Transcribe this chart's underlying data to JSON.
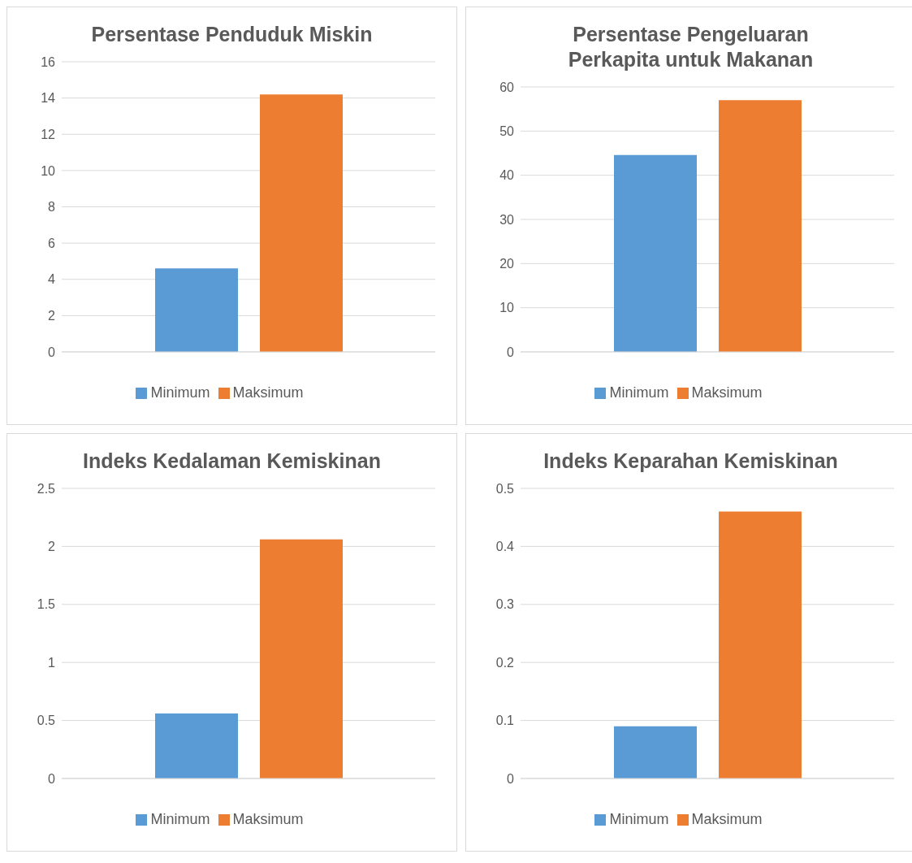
{
  "chart_data": [
    {
      "type": "bar",
      "title": "Persentase Penduduk Miskin",
      "categories": [
        null
      ],
      "series": [
        {
          "name": "Minimum",
          "color": "#5b9bd5",
          "values": [
            4.6
          ]
        },
        {
          "name": "Maksimum",
          "color": "#ed7d31",
          "values": [
            14.2
          ]
        }
      ],
      "ylim": [
        0,
        16
      ],
      "yticks": [
        0,
        2,
        4,
        6,
        8,
        10,
        12,
        14,
        16
      ],
      "grid": "y",
      "legend": "bottom",
      "tick_labels": "y"
    },
    {
      "type": "bar",
      "title": "Persentase Pengeluaran Perkapita untuk Makanan",
      "categories": [
        null
      ],
      "series": [
        {
          "name": "Minimum",
          "color": "#5b9bd5",
          "values": [
            44.6
          ]
        },
        {
          "name": "Maksimum",
          "color": "#ed7d31",
          "values": [
            57
          ]
        }
      ],
      "ylim": [
        0,
        60
      ],
      "yticks": [
        0,
        10,
        20,
        30,
        40,
        50,
        60
      ],
      "grid": "y",
      "legend": "bottom",
      "tick_labels": "y"
    },
    {
      "type": "bar",
      "title": "Indeks Kedalaman Kemiskinan",
      "categories": [
        null
      ],
      "series": [
        {
          "name": "Minimum",
          "color": "#5b9bd5",
          "values": [
            0.56
          ]
        },
        {
          "name": "Maksimum",
          "color": "#ed7d31",
          "values": [
            2.06
          ]
        }
      ],
      "ylim": [
        0,
        2.5
      ],
      "yticks": [
        0,
        0.5,
        1,
        1.5,
        2,
        2.5
      ],
      "grid": "y",
      "legend": "bottom",
      "tick_labels": "y"
    },
    {
      "type": "bar",
      "title": "Indeks Keparahan Kemiskinan",
      "categories": [
        null
      ],
      "series": [
        {
          "name": "Minimum",
          "color": "#5b9bd5",
          "values": [
            0.09
          ]
        },
        {
          "name": "Maksimum",
          "color": "#ed7d31",
          "values": [
            0.46
          ]
        }
      ],
      "ylim": [
        0,
        0.5
      ],
      "yticks": [
        0,
        0.1,
        0.2,
        0.3,
        0.4,
        0.5
      ],
      "grid": "y",
      "legend": "bottom",
      "tick_labels": "y"
    }
  ]
}
